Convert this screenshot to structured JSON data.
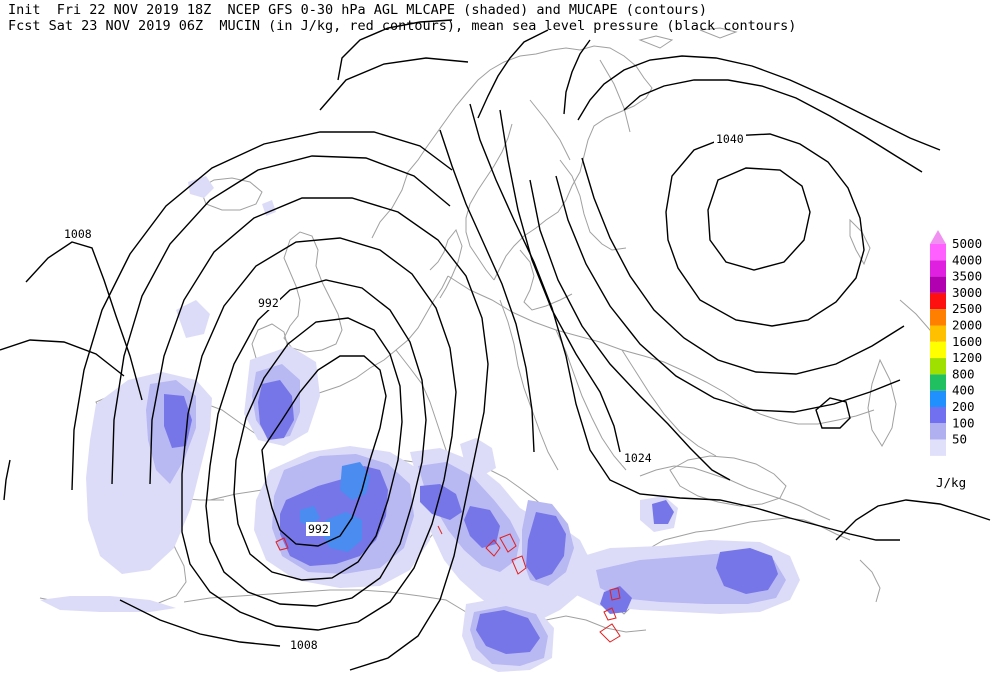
{
  "header": {
    "init_label": "Init",
    "init_value": "Fri 22 NOV 2019 18Z",
    "fcst_label": "Fcst",
    "fcst_value": "Sat 23 NOV 2019 06Z",
    "title_line1": "NCEP GFS 0-30 hPa AGL MLCAPE (shaded) and MUCAPE (contours)",
    "title_line2": "MUCIN (in J/kg, red contours), mean sea level pressure (black contours)"
  },
  "legend": {
    "unit": "J/kg",
    "levels": [
      {
        "label": "5000",
        "color": "#ff60ff"
      },
      {
        "label": "4000",
        "color": "#e020e0"
      },
      {
        "label": "3500",
        "color": "#b000b0"
      },
      {
        "label": "3000",
        "color": "#ff1010"
      },
      {
        "label": "2500",
        "color": "#ff8000"
      },
      {
        "label": "2000",
        "color": "#ffc000"
      },
      {
        "label": "1600",
        "color": "#ffff00"
      },
      {
        "label": "1200",
        "color": "#a0e000"
      },
      {
        "label": "800",
        "color": "#20c060"
      },
      {
        "label": "400",
        "color": "#2090ff"
      },
      {
        "label": "200",
        "color": "#7070f0"
      },
      {
        "label": "100",
        "color": "#b0b0f0"
      },
      {
        "label": "50",
        "color": "#e0e0fa"
      }
    ],
    "top_arrow_color": "#f090f0"
  },
  "isobar_labels": [
    "1040",
    "1008",
    "992",
    "992",
    "1024",
    "1008"
  ],
  "colors": {
    "isobar": "#000000",
    "coastline": "#a0a0a0",
    "mucin": "#e02020",
    "cape_light": "#d8d8f8",
    "cape_mid": "#b4b4f0",
    "cape_dark": "#7878e8",
    "cape_blue": "#4f8ef0"
  }
}
